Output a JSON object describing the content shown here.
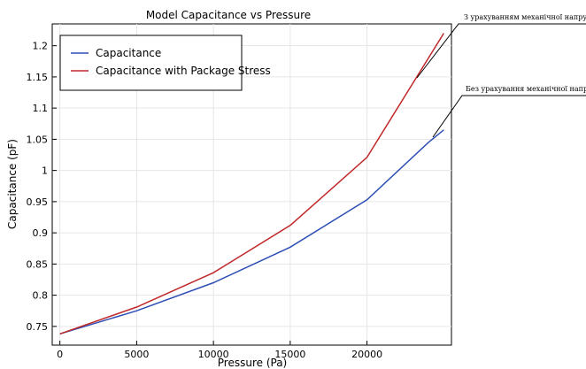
{
  "chart_data": {
    "type": "line",
    "title": "Model Capacitance vs Pressure",
    "xlabel": "Pressure (Pa)",
    "ylabel": "Capacitance (pF)",
    "xlim": [
      -500,
      25500
    ],
    "ylim": [
      0.72,
      1.235
    ],
    "x_ticks": [
      0,
      5000,
      10000,
      15000,
      20000
    ],
    "y_ticks": [
      0.75,
      0.8,
      0.85,
      0.9,
      0.95,
      1,
      1.05,
      1.1,
      1.15,
      1.2
    ],
    "x_tick_labels": [
      "0",
      "5000",
      "10000",
      "15000",
      "20000"
    ],
    "y_tick_labels": [
      "0.75",
      "0.8",
      "0.85",
      "0.9",
      "0.95",
      "1",
      "1.05",
      "1.1",
      "1.15",
      "1.2"
    ],
    "grid": true,
    "legend_position": "top-left",
    "series": [
      {
        "name": "Capacitance",
        "color": "#2d4fb4",
        "x": [
          0,
          5000,
          10000,
          15000,
          20000,
          24000,
          25000
        ],
        "y": [
          0.738,
          0.775,
          0.82,
          0.877,
          0.953,
          1.045,
          1.065
        ]
      },
      {
        "name": "Capacitance with Package Stress",
        "color": "#c0282a",
        "x": [
          0,
          5000,
          10000,
          15000,
          20000,
          25000
        ],
        "y": [
          0.738,
          0.781,
          0.836,
          0.912,
          1.021,
          1.22
        ]
      }
    ],
    "annotations": [
      {
        "text": "З урахуванням механічної напруги"
      },
      {
        "text": "Без урахування механічної напруги"
      }
    ]
  }
}
